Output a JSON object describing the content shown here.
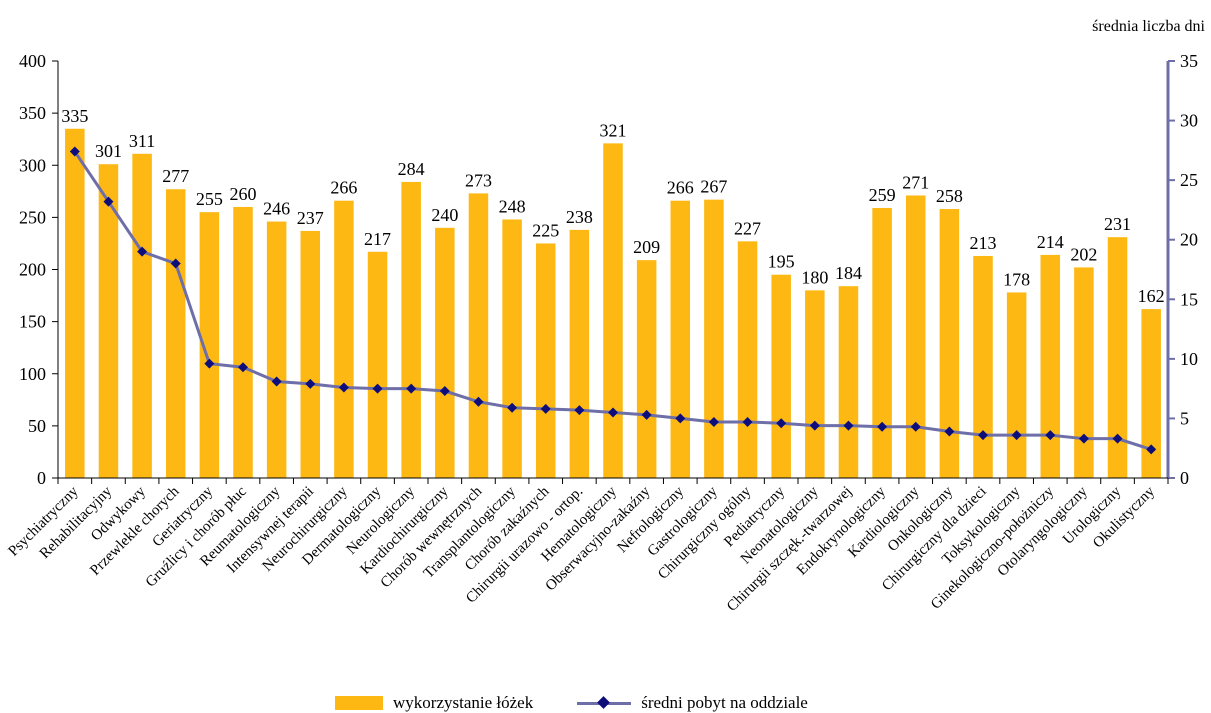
{
  "chart_data": {
    "type": "bar",
    "right_axis_title": "średnia liczba dni",
    "categories": [
      "Psychiatryczny",
      "Rehabilitacyjny",
      "Odwykowy",
      "Przewlekle chorych",
      "Geriatryczny",
      "Gruźlicy i chorób płuc",
      "Reumatologiczny",
      "Intensywnej terapii",
      "Neurochirurgiczny",
      "Dermatologiczny",
      "Neurologiczny",
      "Kardiochirurgiczny",
      "Chorób wewnętrznych",
      "Transplantologiczny",
      "Chorób zakaźnych",
      "Chirurgii urazowo - ortop.",
      "Hematologiczny",
      "Obserwacyjno-zakaźny",
      "Nefrologiczny",
      "Gastrologiczny",
      "Chirurgiczny ogólny",
      "Pediatryczny",
      "Neonatologiczny",
      "Chirurgii szczęk.-twarzowej",
      "Endokrynologiczny",
      "Kardiologiczny",
      "Onkologiczny",
      "Chirurgiczny dla dzieci",
      "Toksykologiczny",
      "Ginekologiczno-położniczy",
      "Otolaryngologiczny",
      "Urologiczny",
      "Okulistyczny"
    ],
    "series": [
      {
        "name": "wykorzystanie łóżek",
        "type": "bar",
        "axis": "left",
        "color": "#FDB813",
        "values": [
          335,
          301,
          311,
          277,
          255,
          260,
          246,
          237,
          266,
          217,
          284,
          240,
          273,
          248,
          225,
          238,
          321,
          209,
          266,
          267,
          227,
          195,
          180,
          184,
          259,
          271,
          258,
          213,
          178,
          214,
          202,
          231,
          162
        ]
      },
      {
        "name": "średni pobyt na oddziale",
        "type": "line",
        "axis": "right",
        "color": "#6E6EA8",
        "marker_color": "#0E0E7A",
        "values": [
          27.4,
          23.2,
          19.0,
          18.0,
          9.6,
          9.3,
          8.1,
          7.9,
          7.6,
          7.5,
          7.5,
          7.3,
          6.4,
          5.9,
          5.8,
          5.7,
          5.5,
          5.3,
          5.0,
          4.7,
          4.7,
          4.6,
          4.4,
          4.4,
          4.3,
          4.3,
          3.9,
          3.6,
          3.6,
          3.6,
          3.3,
          3.3,
          2.4
        ]
      }
    ],
    "y_left": {
      "min": 0,
      "max": 400,
      "step": 50
    },
    "y_right": {
      "min": 0,
      "max": 35,
      "step": 5
    },
    "axis_color": "#6E6EA8",
    "grid": false,
    "legend_position": "bottom"
  },
  "legend": {
    "bar_label": "wykorzystanie łóżek",
    "line_label": "średni pobyt na oddziale"
  }
}
